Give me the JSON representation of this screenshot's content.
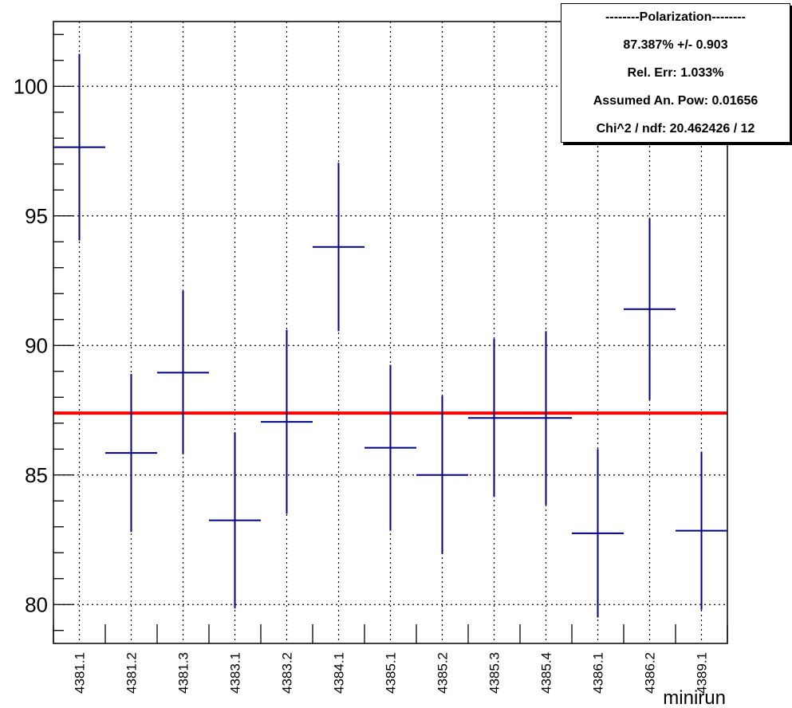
{
  "chart_data": {
    "type": "scatter",
    "title": "",
    "xlabel": "minirun",
    "ylabel": "",
    "ylim": [
      78.5,
      102.5
    ],
    "yticks": [
      80,
      85,
      90,
      95,
      100
    ],
    "grid": true,
    "categories": [
      "4381.1",
      "4381.2",
      "4381.3",
      "4383.1",
      "4383.2",
      "4384.1",
      "4385.1",
      "4385.2",
      "4385.3",
      "4385.4",
      "4386.1",
      "4386.2",
      "4389.1"
    ],
    "series": [
      {
        "values": [
          97.65,
          85.85,
          88.95,
          83.25,
          87.05,
          93.8,
          86.05,
          85.0,
          87.2,
          87.2,
          82.75,
          91.4,
          82.85
        ],
        "errors": [
          3.6,
          3.05,
          3.15,
          3.4,
          3.55,
          3.25,
          3.2,
          3.05,
          3.05,
          3.35,
          3.25,
          3.5,
          3.05
        ],
        "color": "#000080"
      }
    ],
    "fit": {
      "value": 87.387,
      "color": "#ff0000"
    },
    "stats_box": {
      "title": "--------Polarization--------",
      "lines": [
        "87.387% +/- 0.903",
        "Rel. Err: 1.033%",
        "Assumed An. Pow: 0.01656",
        "Chi^2 / ndf: 20.462426 / 12"
      ]
    }
  }
}
